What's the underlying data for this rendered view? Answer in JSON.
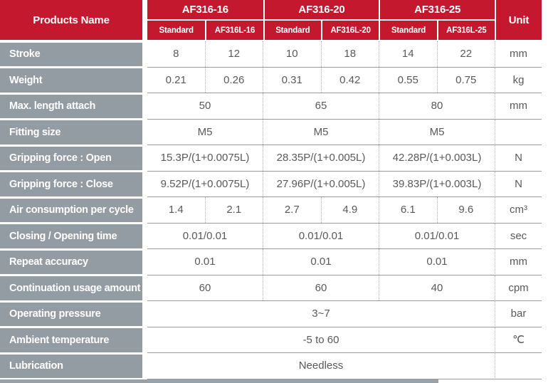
{
  "header": {
    "products_name": "Products Name",
    "unit": "Unit",
    "groups": [
      {
        "name": "AF316-16",
        "subs": [
          "Standard",
          "AF316L-16"
        ]
      },
      {
        "name": "AF316-20",
        "subs": [
          "Standard",
          "AF316L-20"
        ]
      },
      {
        "name": "AF316-25",
        "subs": [
          "Standard",
          "AF316L-25"
        ]
      }
    ]
  },
  "rows": [
    {
      "label": "Stroke",
      "values": [
        "8",
        "12",
        "10",
        "18",
        "14",
        "22"
      ],
      "unit": "mm"
    },
    {
      "label": "Weight",
      "values": [
        "0.21",
        "0.26",
        "0.31",
        "0.42",
        "0.55",
        "0.75"
      ],
      "unit": "kg"
    },
    {
      "label": "Max. length attach",
      "values": [
        "50",
        "65",
        "80"
      ],
      "unit": "mm"
    },
    {
      "label": "Fitting size",
      "values": [
        "M5",
        "M5",
        "M5"
      ],
      "unit": ""
    },
    {
      "label": "Gripping force : Open",
      "values": [
        "15.3P/(1+0.0075L)",
        "28.35P/(1+0.005L)",
        "42.28P/(1+0.003L)"
      ],
      "unit": "N"
    },
    {
      "label": "Gripping force : Close",
      "values": [
        "9.52P/(1+0.0075L)",
        "27.96P/(1+0.005L)",
        "39.83P/(1+0.003L)"
      ],
      "unit": "N"
    },
    {
      "label": "Air consumption per cycle",
      "values": [
        "1.4",
        "2.1",
        "2.7",
        "4.9",
        "6.1",
        "9.6"
      ],
      "unit": "cm³"
    },
    {
      "label": "Closing / Opening time",
      "values": [
        "0.01/0.01",
        "0.01/0.01",
        "0.01/0.01"
      ],
      "unit": "sec"
    },
    {
      "label": "Repeat accuracy",
      "values": [
        "0.01",
        "0.01",
        "0.01"
      ],
      "unit": "mm"
    },
    {
      "label": "Continuation usage amount",
      "values": [
        "60",
        "60",
        "40"
      ],
      "unit": "cpm"
    },
    {
      "label": "Operating pressure",
      "values": [
        "3~7"
      ],
      "unit": "bar"
    },
    {
      "label": "Ambient temperature",
      "values": [
        "-5 to 60"
      ],
      "unit": "℃"
    },
    {
      "label": "Lubrication",
      "values": [
        "Needless"
      ],
      "unit": ""
    }
  ],
  "colors": {
    "header_red": "#c4182f",
    "label_gray": "#939ba3",
    "body_text": "#58595b",
    "row_line": "#9b9b9b",
    "dotted_line": "#b1b1b1"
  }
}
